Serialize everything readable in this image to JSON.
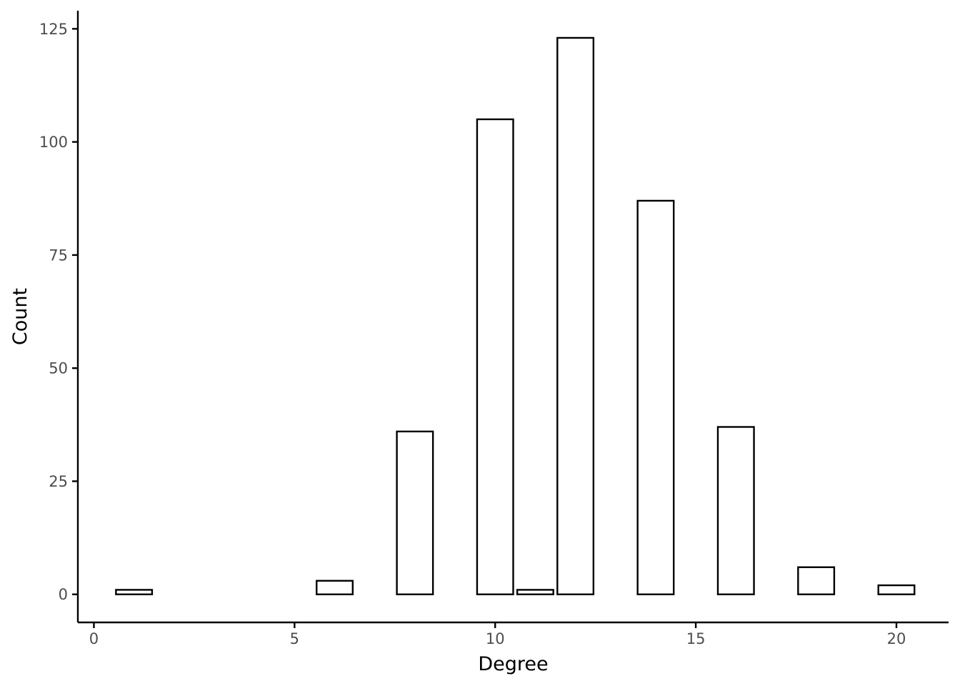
{
  "chart_data": {
    "type": "bar",
    "title": "",
    "xlabel": "Degree",
    "ylabel": "Count",
    "x": [
      1,
      6,
      8,
      10,
      11,
      12,
      14,
      16,
      18,
      20
    ],
    "values": [
      1,
      3,
      36,
      105,
      1,
      123,
      87,
      37,
      6,
      2
    ],
    "bar_width": 0.9,
    "xlim": [
      -0.4,
      21.3
    ],
    "ylim": [
      -6.2,
      129
    ],
    "xticks": [
      0,
      5,
      10,
      15,
      20
    ],
    "yticks": [
      0,
      25,
      50,
      75,
      100,
      125
    ],
    "grid": false,
    "legend": "none",
    "colors": {
      "bar_fill": "#ffffff",
      "bar_stroke": "#000000",
      "axis": "#000000",
      "tick_label": "#4d4d4d"
    }
  }
}
